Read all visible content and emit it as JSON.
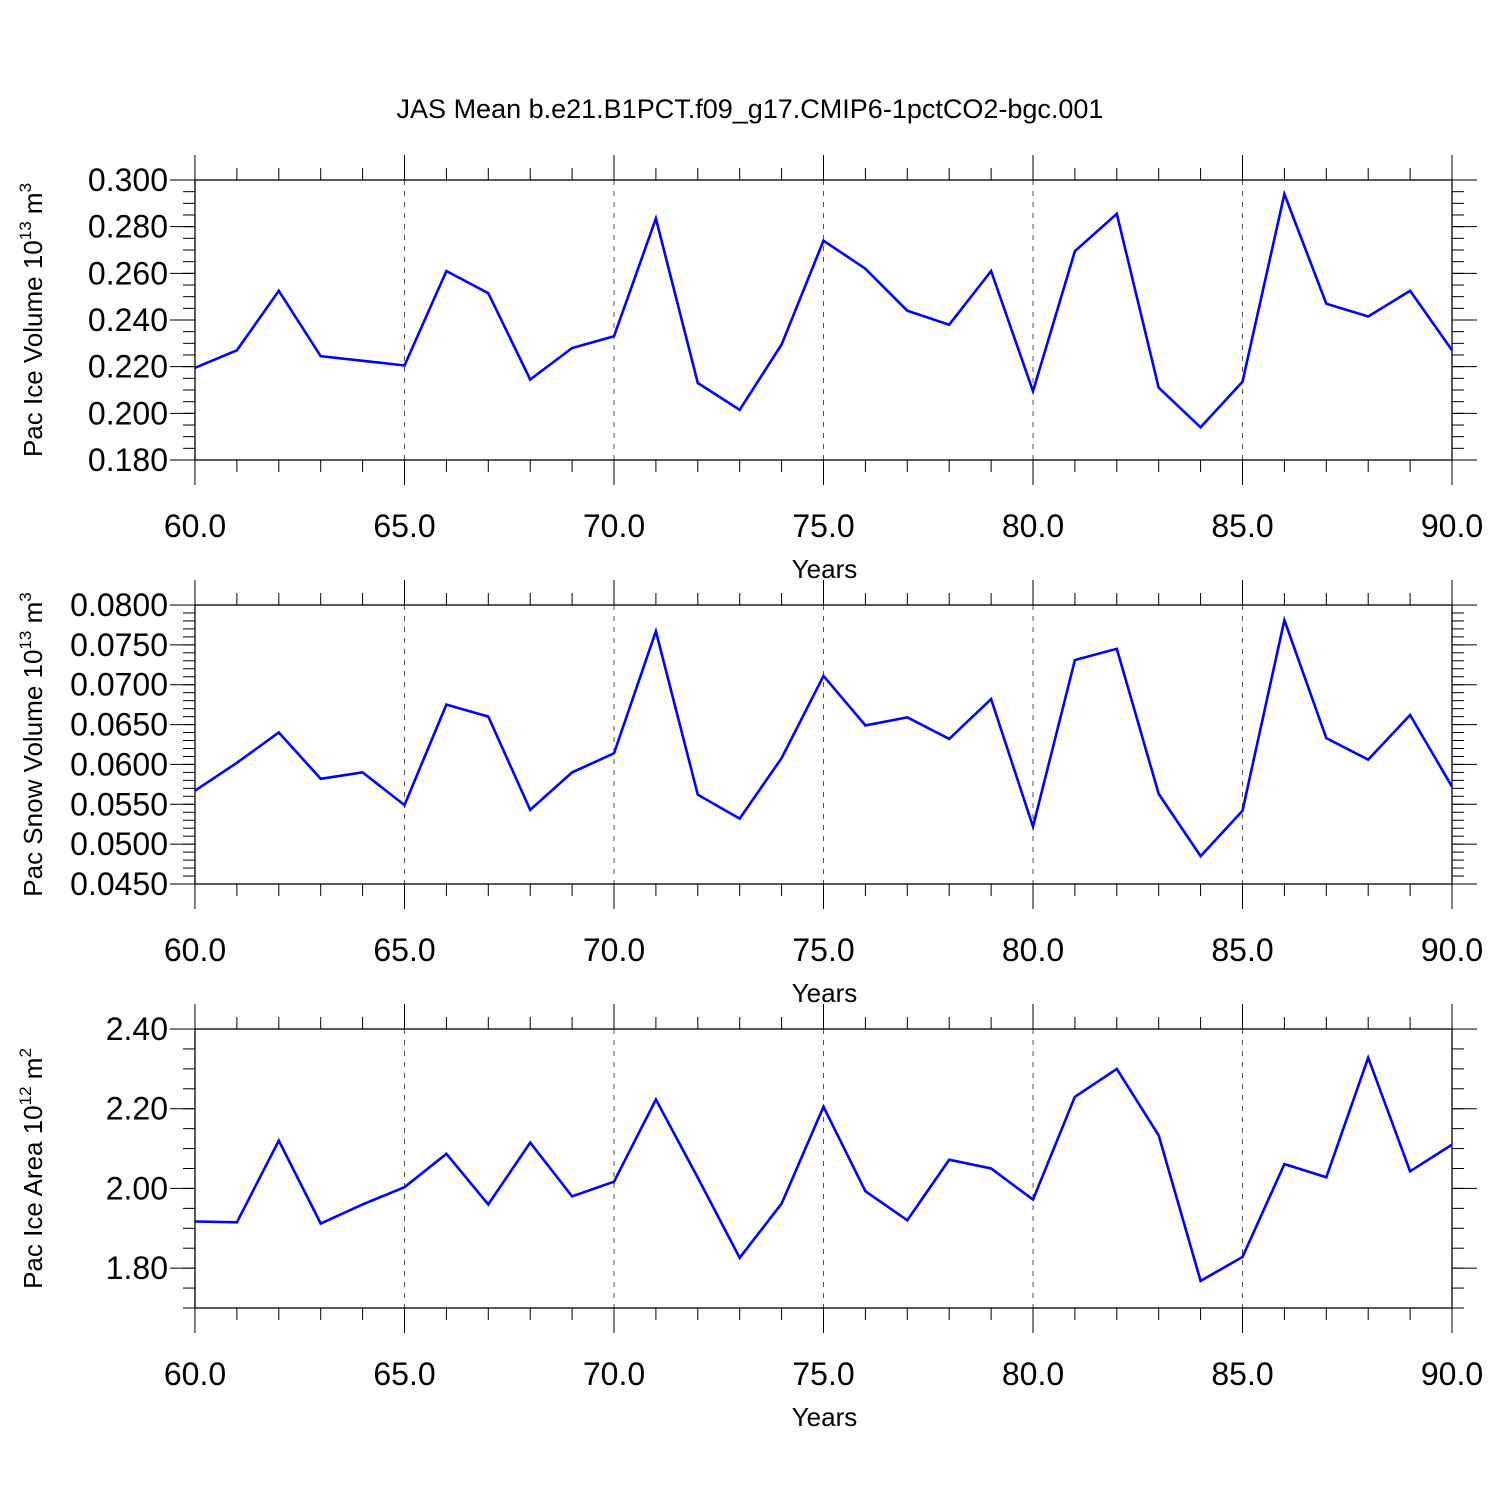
{
  "title": "JAS Mean b.e21.B1PCT.f09_g17.CMIP6-1pctCO2-bgc.001",
  "line_color": "#0000ff",
  "chart_data": [
    {
      "type": "line",
      "xlabel": "Years",
      "ylabel_main": "Pac Ice Volume 10",
      "ylabel_exp": "13",
      "ylabel_unit": " m",
      "ylabel_unit_exp": "3",
      "xlim": [
        60,
        90
      ],
      "ylim": [
        0.18,
        0.3
      ],
      "x_ticks": [
        60,
        65,
        70,
        75,
        80,
        85,
        90
      ],
      "x_tick_labels": [
        "60.0",
        "65.0",
        "70.0",
        "75.0",
        "80.0",
        "85.0",
        "90.0"
      ],
      "y_ticks": [
        0.18,
        0.2,
        0.22,
        0.24,
        0.26,
        0.28,
        0.3
      ],
      "y_tick_labels": [
        "0.180",
        "0.200",
        "0.220",
        "0.240",
        "0.260",
        "0.280",
        "0.300"
      ],
      "y_minor_step": 0.005,
      "x": [
        60,
        61,
        62,
        63,
        64,
        65,
        66,
        67,
        68,
        69,
        70,
        71,
        72,
        73,
        74,
        75,
        76,
        77,
        78,
        79,
        80,
        81,
        82,
        83,
        84,
        85,
        86,
        87,
        88,
        89,
        90
      ],
      "values": [
        0.2195,
        0.227,
        0.2525,
        0.2245,
        0.2225,
        0.2205,
        0.261,
        0.2515,
        0.2145,
        0.228,
        0.233,
        0.2835,
        0.213,
        0.2015,
        0.2295,
        0.274,
        0.262,
        0.244,
        0.238,
        0.261,
        0.2095,
        0.2695,
        0.2855,
        0.211,
        0.194,
        0.2135,
        0.294,
        0.247,
        0.2415,
        0.2525,
        0.227
      ]
    },
    {
      "type": "line",
      "xlabel": "Years",
      "ylabel_main": "Pac Snow Volume 10",
      "ylabel_exp": "13",
      "ylabel_unit": " m",
      "ylabel_unit_exp": "3",
      "xlim": [
        60,
        90
      ],
      "ylim": [
        0.045,
        0.08
      ],
      "x_ticks": [
        60,
        65,
        70,
        75,
        80,
        85,
        90
      ],
      "x_tick_labels": [
        "60.0",
        "65.0",
        "70.0",
        "75.0",
        "80.0",
        "85.0",
        "90.0"
      ],
      "y_ticks": [
        0.045,
        0.05,
        0.055,
        0.06,
        0.065,
        0.07,
        0.075,
        0.08
      ],
      "y_tick_labels": [
        "0.0450",
        "0.0500",
        "0.0550",
        "0.0600",
        "0.0650",
        "0.0700",
        "0.0750",
        "0.0800"
      ],
      "y_minor_step": 0.001,
      "x": [
        60,
        61,
        62,
        63,
        64,
        65,
        66,
        67,
        68,
        69,
        70,
        71,
        72,
        73,
        74,
        75,
        76,
        77,
        78,
        79,
        80,
        81,
        82,
        83,
        84,
        85,
        86,
        87,
        88,
        89,
        90
      ],
      "values": [
        0.0567,
        0.0602,
        0.064,
        0.0582,
        0.059,
        0.0549,
        0.0675,
        0.066,
        0.0543,
        0.059,
        0.0614,
        0.0767,
        0.0562,
        0.0532,
        0.0608,
        0.0711,
        0.0649,
        0.0659,
        0.0632,
        0.0682,
        0.0522,
        0.0731,
        0.0745,
        0.0563,
        0.0485,
        0.0542,
        0.0781,
        0.0633,
        0.0606,
        0.0662,
        0.0572
      ]
    },
    {
      "type": "line",
      "xlabel": "Years",
      "ylabel_main": "Pac Ice Area 10",
      "ylabel_exp": "12",
      "ylabel_unit": " m",
      "ylabel_unit_exp": "2",
      "xlim": [
        60,
        90
      ],
      "ylim": [
        1.7,
        2.4
      ],
      "x_ticks": [
        60,
        65,
        70,
        75,
        80,
        85,
        90
      ],
      "x_tick_labels": [
        "60.0",
        "65.0",
        "70.0",
        "75.0",
        "80.0",
        "85.0",
        "90.0"
      ],
      "y_ticks": [
        1.8,
        2.0,
        2.2,
        2.4
      ],
      "y_tick_labels": [
        "1.80",
        "2.00",
        "2.20",
        "2.40"
      ],
      "y_minor_step": 0.05,
      "x": [
        60,
        61,
        62,
        63,
        64,
        65,
        66,
        67,
        68,
        69,
        70,
        71,
        72,
        73,
        74,
        75,
        76,
        77,
        78,
        79,
        80,
        81,
        82,
        83,
        84,
        85,
        86,
        87,
        88,
        89,
        90
      ],
      "values": [
        1.917,
        1.915,
        2.12,
        1.912,
        1.96,
        2.003,
        2.087,
        1.96,
        2.115,
        1.98,
        2.017,
        2.223,
        2.027,
        1.826,
        1.962,
        2.205,
        1.993,
        1.92,
        2.072,
        2.05,
        1.972,
        2.23,
        2.3,
        2.133,
        1.768,
        1.828,
        2.061,
        2.028,
        2.328,
        2.043,
        2.11
      ]
    }
  ]
}
